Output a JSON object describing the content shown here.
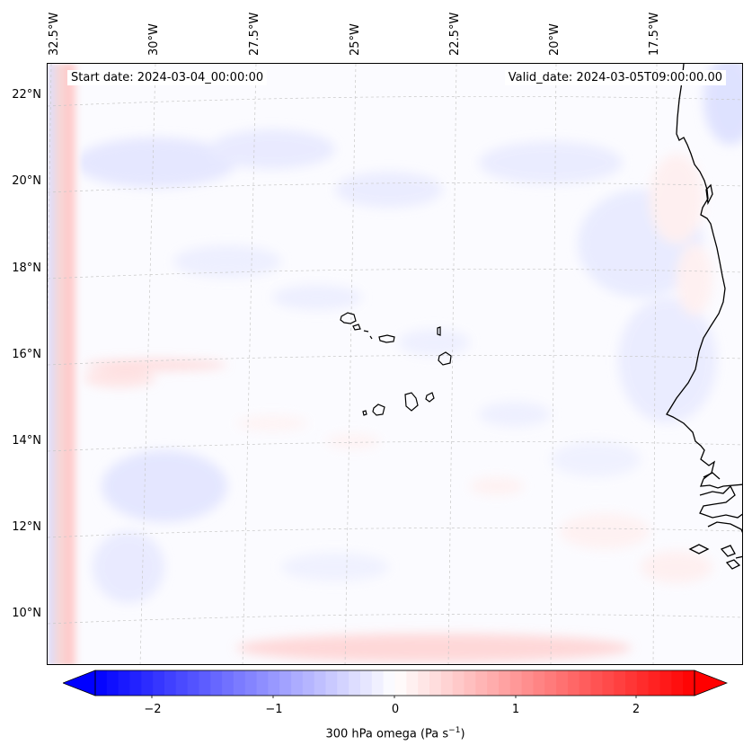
{
  "map": {
    "title_left": "Start date: 2024-03-04_00:00:00",
    "title_right": "Valid_date: 2024-03-05T09:00:00.00",
    "lon_labels": [
      "32.5°W",
      "30°W",
      "27.5°W",
      "25°W",
      "22.5°W",
      "20°W",
      "17.5°W"
    ],
    "lat_labels": [
      "22°N",
      "20°N",
      "18°N",
      "16°N",
      "14°N",
      "12°N",
      "10°N"
    ],
    "extent": {
      "lon_min": -33.0,
      "lon_max": -15.5,
      "lat_min": 8.8,
      "lat_max": 22.8
    }
  },
  "colorbar": {
    "ticks": [
      "−2",
      "−1",
      "0",
      "1",
      "2"
    ],
    "label": "300 hPa omega (Pa s",
    "label_sup": "−1",
    "label_end": ")",
    "vmin": -2.6,
    "vmax": 2.6,
    "color_low": "#0000ff",
    "color_mid": "#ffffff",
    "color_high": "#ff0000"
  }
}
